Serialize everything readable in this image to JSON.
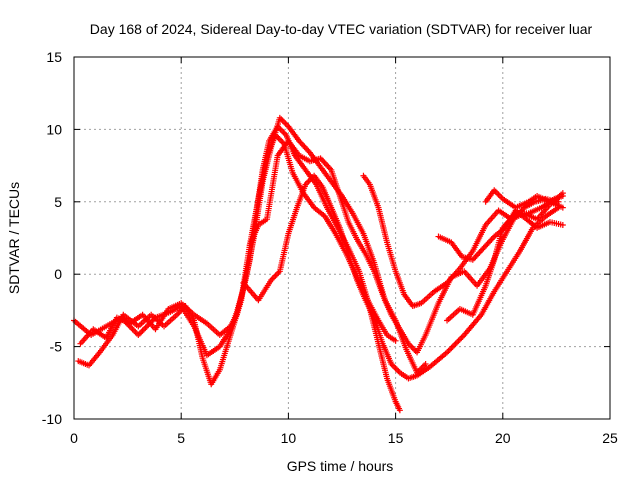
{
  "chart_data": {
    "type": "scatter",
    "title": "Day 168 of 2024, Sidereal Day-to-day VTEC variation (SDTVAR) for receiver luar",
    "xlabel": "GPS time / hours",
    "ylabel": "SDTVAR / TECUs",
    "xlim": [
      0,
      25
    ],
    "ylim": [
      -10,
      15
    ],
    "xticks": [
      0,
      5,
      10,
      15,
      20,
      25
    ],
    "yticks": [
      -10,
      -5,
      0,
      5,
      10,
      15
    ],
    "grid": true,
    "marker": "+",
    "series_color": "#ff0000",
    "series": [
      {
        "name": "track 1",
        "points": [
          [
            0,
            -3.2
          ],
          [
            0.8,
            -4.2
          ],
          [
            1.5,
            -3.6
          ],
          [
            2.2,
            -3.0
          ],
          [
            3.0,
            -4.2
          ],
          [
            3.8,
            -3.0
          ],
          [
            4.5,
            -2.6
          ],
          [
            5.0,
            -2.2
          ],
          [
            5.6,
            -3.6
          ],
          [
            6.2,
            -5.6
          ],
          [
            6.8,
            -5.0
          ],
          [
            7.3,
            -3.8
          ],
          [
            7.6,
            -2.6
          ],
          [
            7.9,
            -1.0
          ],
          [
            8.2,
            1.0
          ],
          [
            8.5,
            4.2
          ],
          [
            8.8,
            7.2
          ],
          [
            9.1,
            9.2
          ],
          [
            9.5,
            10.2
          ],
          [
            9.9,
            9.6
          ],
          [
            10.3,
            8.2
          ],
          [
            10.8,
            7.2
          ],
          [
            11.3,
            6.2
          ],
          [
            11.8,
            4.6
          ],
          [
            12.3,
            3.2
          ],
          [
            12.8,
            1.8
          ],
          [
            13.3,
            0.2
          ],
          [
            13.7,
            -1.8
          ],
          [
            14.2,
            -3.2
          ],
          [
            14.6,
            -4.2
          ],
          [
            15.0,
            -4.6
          ]
        ]
      },
      {
        "name": "track 2",
        "points": [
          [
            0.2,
            -6.0
          ],
          [
            0.7,
            -6.3
          ],
          [
            1.2,
            -5.4
          ],
          [
            1.8,
            -4.2
          ],
          [
            2.3,
            -2.8
          ],
          [
            3.0,
            -3.6
          ],
          [
            3.6,
            -2.8
          ],
          [
            4.2,
            -3.6
          ],
          [
            4.8,
            -2.8
          ],
          [
            5.2,
            -2.2
          ],
          [
            5.6,
            -3.2
          ],
          [
            6.0,
            -5.8
          ],
          [
            6.4,
            -7.6
          ],
          [
            6.8,
            -6.6
          ],
          [
            7.3,
            -4.2
          ],
          [
            7.8,
            -1.8
          ],
          [
            8.2,
            2.0
          ],
          [
            8.6,
            5.2
          ],
          [
            9.0,
            8.2
          ],
          [
            9.4,
            9.6
          ],
          [
            9.8,
            9.0
          ],
          [
            10.2,
            7.0
          ],
          [
            10.7,
            5.6
          ],
          [
            11.2,
            4.6
          ],
          [
            11.7,
            4.0
          ],
          [
            12.2,
            2.8
          ],
          [
            12.7,
            1.4
          ],
          [
            13.2,
            -0.2
          ],
          [
            13.7,
            -1.8
          ],
          [
            14.2,
            -4.8
          ],
          [
            14.6,
            -7.2
          ],
          [
            15.0,
            -8.8
          ],
          [
            15.2,
            -9.4
          ]
        ]
      },
      {
        "name": "track 3",
        "points": [
          [
            0.3,
            -4.8
          ],
          [
            0.9,
            -3.8
          ],
          [
            1.5,
            -4.4
          ],
          [
            2.0,
            -3.0
          ],
          [
            2.6,
            -3.4
          ],
          [
            3.2,
            -2.8
          ],
          [
            3.8,
            -3.8
          ],
          [
            4.4,
            -2.4
          ],
          [
            5.0,
            -2.0
          ],
          [
            5.6,
            -2.8
          ],
          [
            6.2,
            -3.4
          ],
          [
            6.8,
            -4.2
          ],
          [
            7.3,
            -3.6
          ],
          [
            7.6,
            -2.8
          ],
          [
            8.0,
            -0.4
          ],
          [
            8.4,
            2.6
          ],
          [
            8.8,
            6.4
          ],
          [
            9.2,
            8.8
          ],
          [
            9.6,
            10.8
          ],
          [
            10.0,
            10.2
          ],
          [
            10.5,
            9.2
          ],
          [
            11.0,
            8.4
          ],
          [
            11.5,
            7.4
          ],
          [
            12.0,
            6.4
          ],
          [
            12.5,
            5.4
          ],
          [
            13.0,
            4.2
          ],
          [
            13.5,
            2.8
          ],
          [
            14.0,
            0.8
          ],
          [
            14.5,
            -1.8
          ],
          [
            15.0,
            -3.2
          ],
          [
            15.5,
            -5.2
          ],
          [
            16.0,
            -6.8
          ],
          [
            16.4,
            -6.2
          ]
        ]
      },
      {
        "name": "track 4",
        "points": [
          [
            8.2,
            2.0
          ],
          [
            8.6,
            3.4
          ],
          [
            9.0,
            3.8
          ],
          [
            9.5,
            8.2
          ],
          [
            10.0,
            9.2
          ],
          [
            10.5,
            8.2
          ],
          [
            11.0,
            7.8
          ],
          [
            11.5,
            8.0
          ],
          [
            12.0,
            7.2
          ],
          [
            12.4,
            5.4
          ],
          [
            12.8,
            3.6
          ],
          [
            13.2,
            2.4
          ],
          [
            13.6,
            1.4
          ],
          [
            14.0,
            0.2
          ],
          [
            14.4,
            -1.4
          ],
          [
            14.8,
            -2.8
          ],
          [
            15.2,
            -3.8
          ],
          [
            15.6,
            -4.8
          ],
          [
            16.0,
            -5.4
          ],
          [
            16.4,
            -4.2
          ],
          [
            17.0,
            -2.0
          ],
          [
            17.6,
            -0.2
          ],
          [
            18.2,
            0.2
          ],
          [
            18.8,
            -0.8
          ],
          [
            19.4,
            0.4
          ],
          [
            20.0,
            2.4
          ],
          [
            20.5,
            3.8
          ],
          [
            21.0,
            4.6
          ],
          [
            21.5,
            5.0
          ],
          [
            22.0,
            5.2
          ],
          [
            22.6,
            5.0
          ]
        ]
      },
      {
        "name": "track 5",
        "points": [
          [
            7.9,
            -0.6
          ],
          [
            8.6,
            -1.8
          ],
          [
            9.2,
            -0.4
          ],
          [
            9.6,
            0.2
          ],
          [
            10.0,
            2.8
          ],
          [
            10.4,
            4.6
          ],
          [
            10.8,
            6.2
          ],
          [
            11.2,
            6.8
          ],
          [
            11.6,
            6.0
          ],
          [
            12.0,
            4.6
          ],
          [
            12.4,
            3.2
          ],
          [
            12.8,
            1.4
          ],
          [
            13.2,
            -0.4
          ],
          [
            13.6,
            -1.8
          ],
          [
            14.0,
            -3.0
          ],
          [
            14.4,
            -4.8
          ],
          [
            14.8,
            -6.2
          ],
          [
            15.2,
            -6.8
          ],
          [
            15.6,
            -7.2
          ],
          [
            16.0,
            -7.0
          ],
          [
            16.6,
            -6.4
          ],
          [
            17.4,
            -5.4
          ],
          [
            18.2,
            -4.2
          ],
          [
            19.0,
            -2.8
          ],
          [
            19.6,
            -1.2
          ],
          [
            20.2,
            0.2
          ],
          [
            20.8,
            1.6
          ],
          [
            21.4,
            3.2
          ],
          [
            22.0,
            4.0
          ],
          [
            22.6,
            4.6
          ]
        ]
      },
      {
        "name": "track 6",
        "points": [
          [
            13.5,
            6.8
          ],
          [
            13.8,
            6.2
          ],
          [
            14.2,
            4.6
          ],
          [
            14.6,
            2.2
          ],
          [
            15.0,
            0.2
          ],
          [
            15.4,
            -1.4
          ],
          [
            15.8,
            -2.2
          ],
          [
            16.2,
            -2.0
          ],
          [
            16.8,
            -1.2
          ],
          [
            17.4,
            -0.6
          ],
          [
            18.0,
            0.4
          ],
          [
            18.6,
            1.6
          ],
          [
            19.2,
            3.4
          ],
          [
            19.8,
            4.4
          ],
          [
            20.4,
            3.8
          ],
          [
            21.0,
            4.2
          ],
          [
            21.6,
            3.8
          ],
          [
            22.2,
            4.8
          ],
          [
            22.8,
            5.6
          ]
        ]
      },
      {
        "name": "track 7",
        "points": [
          [
            17.0,
            2.6
          ],
          [
            17.6,
            2.2
          ],
          [
            18.1,
            1.2
          ],
          [
            18.6,
            1.0
          ],
          [
            19.1,
            1.8
          ],
          [
            19.6,
            2.6
          ],
          [
            20.1,
            3.2
          ],
          [
            20.6,
            4.4
          ],
          [
            21.1,
            3.8
          ],
          [
            21.6,
            3.2
          ],
          [
            22.2,
            3.6
          ],
          [
            22.8,
            3.4
          ]
        ]
      },
      {
        "name": "track 8",
        "points": [
          [
            17.4,
            -3.2
          ],
          [
            18.0,
            -2.4
          ],
          [
            18.6,
            -2.8
          ],
          [
            19.2,
            -0.8
          ],
          [
            19.6,
            1.0
          ],
          [
            20.0,
            3.2
          ],
          [
            20.6,
            4.2
          ],
          [
            21.2,
            4.2
          ],
          [
            21.8,
            4.6
          ],
          [
            22.4,
            5.2
          ],
          [
            22.8,
            5.4
          ]
        ]
      },
      {
        "name": "track 9",
        "points": [
          [
            19.2,
            5.0
          ],
          [
            19.6,
            5.8
          ],
          [
            20.0,
            5.2
          ],
          [
            20.6,
            4.6
          ],
          [
            21.2,
            5.0
          ],
          [
            21.6,
            5.4
          ],
          [
            22.2,
            5.0
          ],
          [
            22.8,
            4.6
          ]
        ]
      }
    ]
  }
}
